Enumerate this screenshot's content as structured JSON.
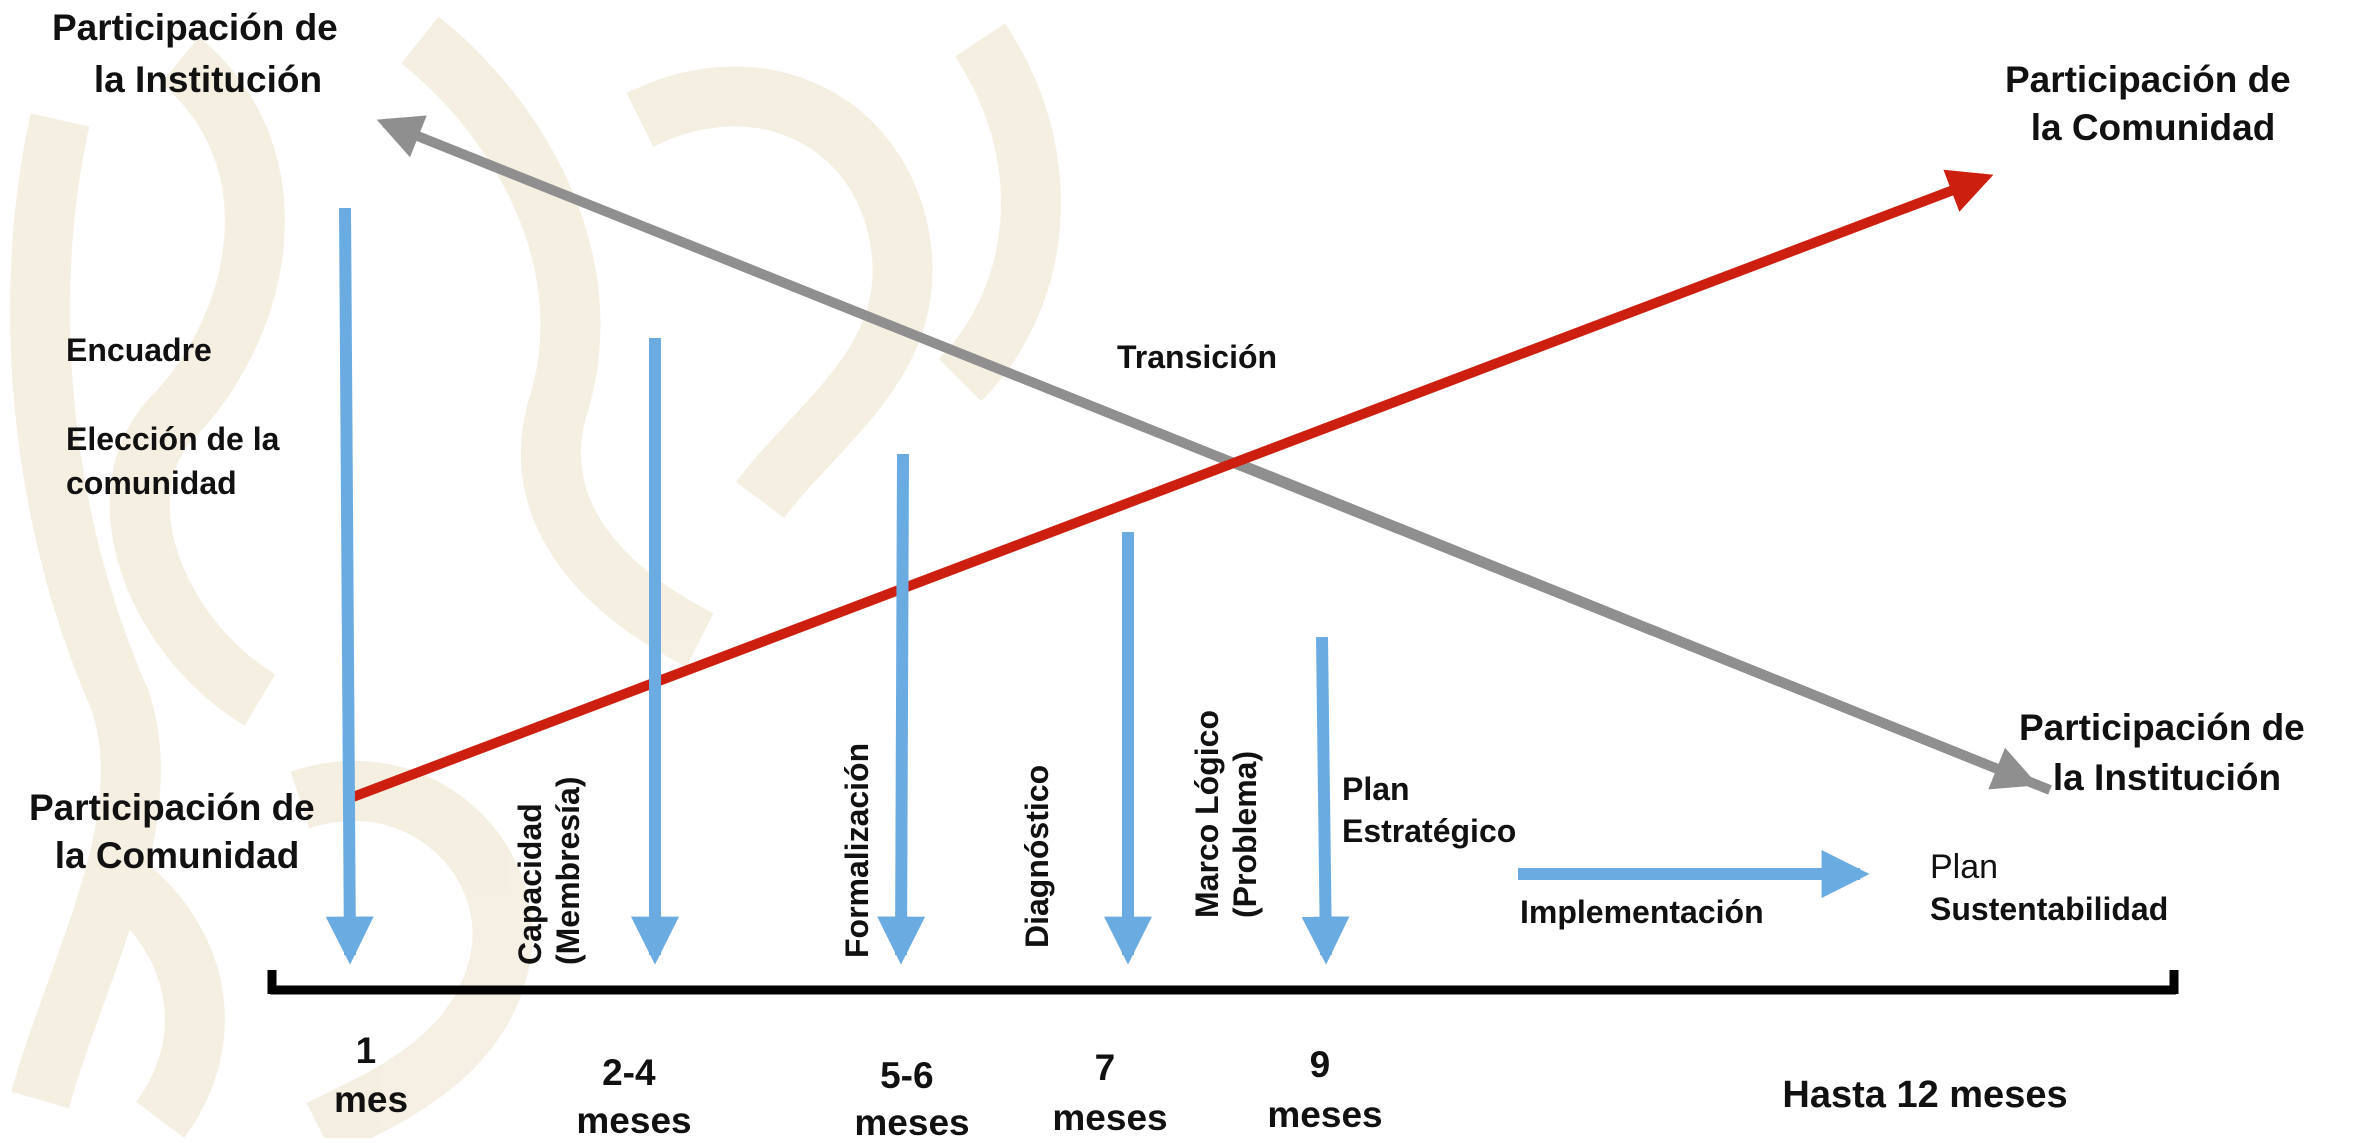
{
  "colors": {
    "blue_arrow": "#6aace2",
    "red_arrow": "#cc1f10",
    "gray_arrow": "#8f8f8f",
    "timeline": "#000000",
    "background_pattern": "#f3ecdc"
  },
  "corner_labels": {
    "top_left": {
      "line1": "Participación de",
      "line2": "la Institución"
    },
    "top_right": {
      "line1": "Participación de",
      "line2": "la Comunidad"
    },
    "bottom_left": {
      "line1": "Participación de",
      "line2": "la Comunidad"
    },
    "bottom_right": {
      "line1": "Participación de",
      "line2": "la Institución"
    }
  },
  "phase_labels": {
    "encuadre": "Encuadre",
    "eleccion": {
      "line1": "Elección de la",
      "line2": "comunidad"
    },
    "transicion": "Transición",
    "capacidad": {
      "line1": "Capacidad",
      "line2": "(Membresía)"
    },
    "formalizacion": "Formalización",
    "diagnostico": "Diagnóstico",
    "marco_logico": {
      "line1": "Marco Lógico",
      "line2": "(Problema)"
    },
    "plan_estrategico": {
      "line1": "Plan",
      "line2": "Estratégico"
    },
    "implementacion": "Implementación",
    "plan_sustentabilidad": {
      "line1": "Plan",
      "line2": "Sustentabilidad"
    }
  },
  "timeline_labels": {
    "t1": {
      "line1": "1",
      "line2": "mes"
    },
    "t2": {
      "line1": "2-4",
      "line2": "meses"
    },
    "t3": {
      "line1": "5-6",
      "line2": "meses"
    },
    "t4": {
      "line1": "7",
      "line2": "meses"
    },
    "t5": {
      "line1": "9",
      "line2": "meses"
    },
    "t6": "Hasta 12 meses"
  }
}
